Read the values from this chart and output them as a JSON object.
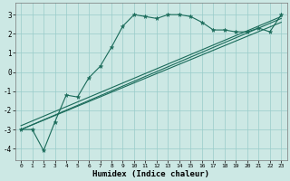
{
  "xlabel": "Humidex (Indice chaleur)",
  "xlim": [
    -0.5,
    23.5
  ],
  "ylim": [
    -4.6,
    3.6
  ],
  "xticks": [
    0,
    1,
    2,
    3,
    4,
    5,
    6,
    7,
    8,
    9,
    10,
    11,
    12,
    13,
    14,
    15,
    16,
    17,
    18,
    19,
    20,
    21,
    22,
    23
  ],
  "yticks": [
    -4,
    -3,
    -2,
    -1,
    0,
    1,
    2,
    3
  ],
  "bg_color": "#cce8e4",
  "grid_color": "#99ccca",
  "line_color": "#1a6b5a",
  "line1_x": [
    0,
    1,
    2,
    3,
    4,
    5,
    6,
    7,
    8,
    9,
    10,
    11,
    12,
    13,
    14,
    15,
    16,
    17,
    18,
    19,
    20,
    21,
    22,
    23
  ],
  "line1_y": [
    -3.0,
    -3.0,
    -4.1,
    -2.6,
    -1.2,
    -1.3,
    -0.3,
    0.3,
    1.3,
    2.4,
    3.0,
    2.9,
    2.8,
    3.0,
    3.0,
    2.9,
    2.6,
    2.2,
    2.2,
    2.1,
    2.1,
    2.3,
    2.1,
    3.0
  ],
  "line2_x": [
    0,
    23
  ],
  "line2_y": [
    -3.0,
    2.8
  ],
  "line3_x": [
    0,
    23
  ],
  "line3_y": [
    -3.0,
    2.6
  ],
  "line4_x": [
    0,
    23
  ],
  "line4_y": [
    -2.8,
    2.9
  ]
}
